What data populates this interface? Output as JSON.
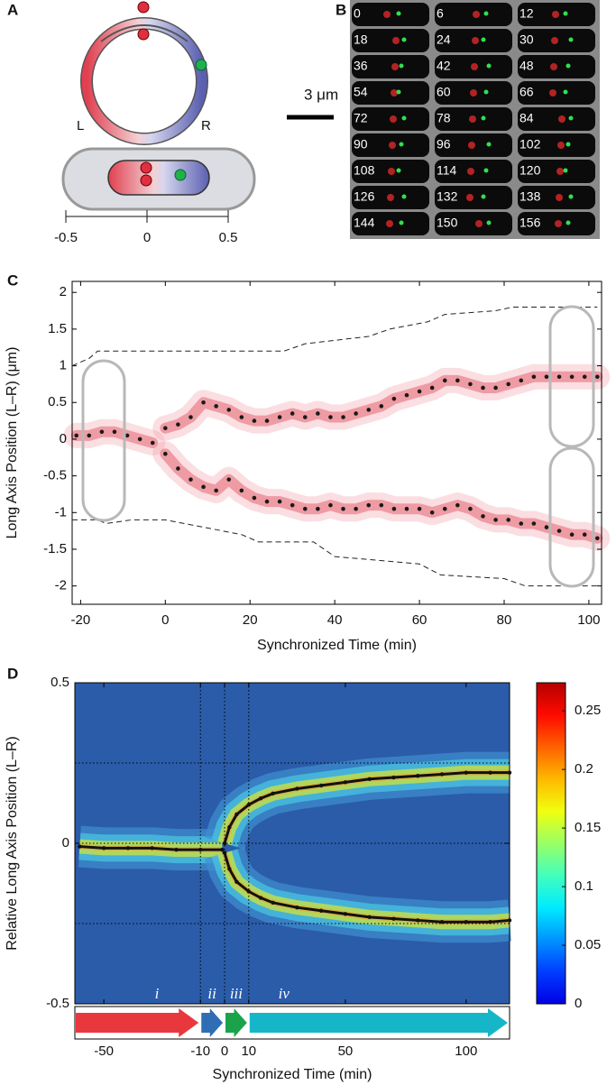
{
  "panel_labels": [
    "A",
    "B",
    "C",
    "D"
  ],
  "panel_a": {
    "left_label": "L",
    "right_label": "R",
    "axis_ticks": [
      -0.5,
      0,
      0.5
    ]
  },
  "panel_b": {
    "scale_bar": "3 μm",
    "frame_times": [
      0,
      6,
      12,
      18,
      24,
      30,
      36,
      42,
      48,
      54,
      60,
      66,
      72,
      78,
      84,
      90,
      96,
      102,
      108,
      114,
      120,
      126,
      132,
      138,
      144,
      150,
      156
    ]
  },
  "chart_data": [
    {
      "type": "scatter",
      "xlabel": "Synchronized Time (min)",
      "ylabel": "Long Axis Position (L–R) (μm)",
      "xlim": [
        -22,
        103
      ],
      "ylim": [
        -2.25,
        2.15
      ],
      "xticks": [
        -20,
        0,
        20,
        40,
        60,
        80,
        100
      ],
      "yticks": [
        -2,
        -1.5,
        -1,
        -0.5,
        0,
        0.5,
        1,
        1.5,
        2
      ],
      "series": [
        {
          "type": "scatter",
          "color": "#1a1a1a",
          "x": [
            -21,
            -18,
            -15,
            -12,
            -9,
            -6,
            -3
          ],
          "values": [
            0.05,
            0.05,
            0.1,
            0.1,
            0.05,
            0,
            -0.05
          ]
        },
        {
          "type": "scatter",
          "color": "#1a1a1a",
          "x": [
            0,
            3,
            6,
            9,
            12,
            15,
            18,
            21,
            24,
            27,
            30,
            33,
            36,
            39,
            42,
            45,
            48,
            51,
            54,
            57,
            60,
            63,
            66,
            69,
            72,
            75,
            78,
            81,
            84,
            87,
            90,
            93,
            96,
            99,
            102
          ],
          "values": [
            0.15,
            0.2,
            0.3,
            0.5,
            0.45,
            0.4,
            0.3,
            0.25,
            0.25,
            0.3,
            0.35,
            0.3,
            0.35,
            0.3,
            0.3,
            0.35,
            0.4,
            0.45,
            0.55,
            0.6,
            0.65,
            0.7,
            0.8,
            0.8,
            0.75,
            0.7,
            0.7,
            0.75,
            0.8,
            0.85,
            0.85,
            0.85,
            0.85,
            0.85,
            0.85
          ]
        },
        {
          "type": "scatter",
          "color": "#1a1a1a",
          "x": [
            0,
            3,
            6,
            9,
            12,
            15,
            18,
            21,
            24,
            27,
            30,
            33,
            36,
            39,
            42,
            45,
            48,
            51,
            54,
            57,
            60,
            63,
            66,
            69,
            72,
            75,
            78,
            81,
            84,
            87,
            90,
            93,
            96,
            99,
            102
          ],
          "values": [
            -0.2,
            -0.4,
            -0.55,
            -0.65,
            -0.7,
            -0.55,
            -0.7,
            -0.8,
            -0.85,
            -0.85,
            -0.9,
            -0.95,
            -0.95,
            -0.9,
            -0.95,
            -0.95,
            -0.9,
            -0.9,
            -0.95,
            -0.95,
            -0.95,
            -1.0,
            -0.95,
            -0.9,
            -0.95,
            -1.05,
            -1.1,
            -1.1,
            -1.15,
            -1.15,
            -1.2,
            -1.25,
            -1.3,
            -1.3,
            -1.35
          ]
        },
        {
          "type": "dashed",
          "color": "#222222",
          "x": [
            -22,
            -18,
            -16,
            28,
            33,
            48,
            53,
            62,
            66,
            78,
            82,
            102
          ],
          "values": [
            1.0,
            1.1,
            1.2,
            1.2,
            1.3,
            1.4,
            1.5,
            1.6,
            1.7,
            1.75,
            1.8,
            1.8
          ]
        },
        {
          "type": "dashed",
          "color": "#222222",
          "x": [
            -22,
            -16,
            -14,
            -8,
            0,
            18,
            22,
            35,
            40,
            60,
            65,
            80,
            85,
            102
          ],
          "values": [
            -1.1,
            -1.1,
            -1.15,
            -1.1,
            -1.1,
            -1.3,
            -1.4,
            -1.4,
            -1.6,
            -1.7,
            -1.85,
            -1.9,
            -2.0,
            -2.0
          ]
        }
      ]
    },
    {
      "type": "line",
      "xlabel": "Synchronized Time (min)",
      "ylabel": "Relative Long Axis Position (L–R)",
      "xlim": [
        -62,
        118
      ],
      "ylim": [
        -0.5,
        0.5
      ],
      "xticks": [
        -50,
        -10,
        0,
        10,
        50,
        100
      ],
      "yticks": [
        -0.5,
        0,
        0.5
      ],
      "hlines": [
        -0.25,
        0,
        0.25
      ],
      "phase_bounds": [
        -10,
        0,
        10
      ],
      "phases": [
        {
          "label": "i",
          "color": "#e8383d"
        },
        {
          "label": "ii",
          "color": "#2f6db5"
        },
        {
          "label": "iii",
          "color": "#1aa34a"
        },
        {
          "label": "iv",
          "color": "#16b6c9"
        }
      ],
      "clim": [
        0,
        0.274
      ],
      "cticks": [
        0,
        0.05,
        0.1,
        0.15,
        0.2,
        0.25
      ],
      "colormap": "jet",
      "series": [
        {
          "type": "line",
          "color": "#111111",
          "x": [
            -60,
            -50,
            -40,
            -30,
            -20,
            -10,
            -1
          ],
          "values": [
            -0.01,
            -0.015,
            -0.015,
            -0.015,
            -0.02,
            -0.02,
            -0.02
          ]
        },
        {
          "type": "line",
          "color": "#111111",
          "x": [
            0,
            2,
            5,
            10,
            15,
            20,
            30,
            40,
            50,
            60,
            70,
            80,
            90,
            100,
            110,
            118
          ],
          "values": [
            0.0,
            0.05,
            0.09,
            0.12,
            0.14,
            0.155,
            0.17,
            0.18,
            0.19,
            0.2,
            0.205,
            0.21,
            0.215,
            0.22,
            0.22,
            0.22
          ]
        },
        {
          "type": "line",
          "color": "#111111",
          "x": [
            0,
            2,
            5,
            10,
            15,
            20,
            30,
            40,
            50,
            60,
            70,
            80,
            90,
            100,
            110,
            118
          ],
          "values": [
            -0.03,
            -0.08,
            -0.12,
            -0.15,
            -0.17,
            -0.185,
            -0.2,
            -0.21,
            -0.22,
            -0.23,
            -0.235,
            -0.24,
            -0.245,
            -0.245,
            -0.245,
            -0.24
          ]
        }
      ]
    }
  ]
}
